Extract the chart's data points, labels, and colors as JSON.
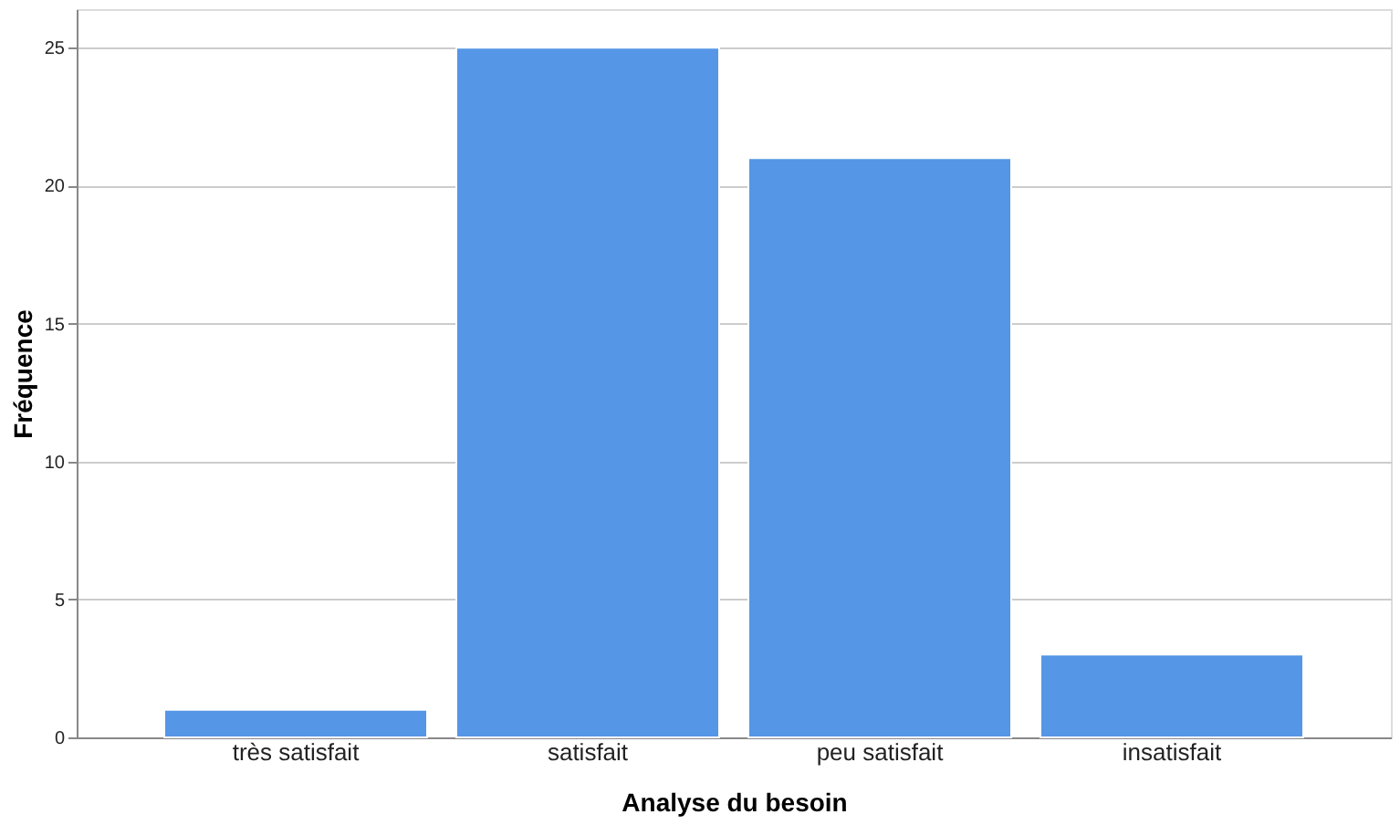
{
  "chart_data": {
    "type": "bar",
    "xlabel": "Analyse du besoin",
    "ylabel": "Fréquence",
    "categories": [
      "très satisfait",
      "satisfait",
      "peu satisfait",
      "insatisfait"
    ],
    "values": [
      1,
      25,
      21,
      3
    ],
    "color": "#5596e6",
    "ylim": [
      0,
      26.4
    ],
    "yticks": [
      0,
      5,
      10,
      15,
      20,
      25
    ],
    "grid": "y"
  }
}
